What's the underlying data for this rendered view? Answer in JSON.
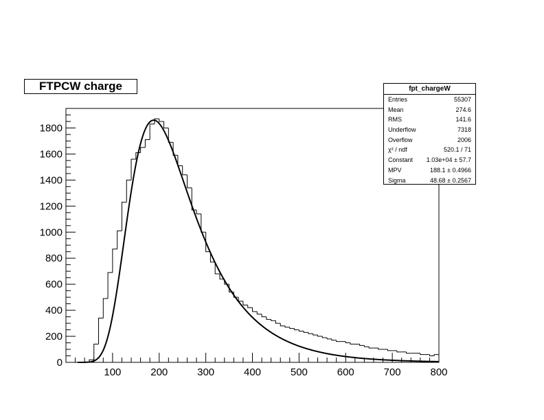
{
  "chart_data": {
    "type": "bar",
    "title": "FTPCW charge",
    "xlim": [
      0,
      800
    ],
    "ylim": [
      0,
      1950
    ],
    "x_ticks": [
      100,
      200,
      300,
      400,
      500,
      600,
      700,
      800
    ],
    "y_ticks": [
      0,
      200,
      400,
      600,
      800,
      1000,
      1200,
      1400,
      1600,
      1800
    ],
    "grid": false,
    "histogram": {
      "bin_width": 10,
      "bin_start": 0,
      "values": [
        0,
        0,
        0,
        0,
        0,
        20,
        140,
        340,
        490,
        690,
        870,
        1010,
        1230,
        1400,
        1560,
        1610,
        1650,
        1710,
        1830,
        1870,
        1850,
        1800,
        1690,
        1590,
        1510,
        1440,
        1340,
        1170,
        1140,
        1000,
        850,
        770,
        680,
        640,
        600,
        540,
        500,
        470,
        440,
        420,
        390,
        370,
        350,
        330,
        320,
        300,
        280,
        270,
        260,
        250,
        240,
        230,
        220,
        210,
        200,
        190,
        180,
        170,
        160,
        160,
        150,
        140,
        140,
        130,
        120,
        110,
        110,
        100,
        100,
        90,
        90,
        80,
        80,
        70,
        70,
        70,
        60,
        60,
        50,
        60
      ]
    },
    "fit": {
      "type": "landau",
      "constant": 10300,
      "mpv": 188.1,
      "sigma": 48.68
    }
  },
  "title_box": {
    "text": "FTPCW charge"
  },
  "stats": {
    "header": "fpt_chargeW",
    "rows": [
      {
        "key": "Entries",
        "value": "55307"
      },
      {
        "key": "Mean",
        "value": "274.6"
      },
      {
        "key": "RMS",
        "value": "141.6"
      },
      {
        "key": "Underflow",
        "value": "7318"
      },
      {
        "key": "Overflow",
        "value": "2006"
      },
      {
        "key": "χ² / ndf",
        "value": "520.1 / 71"
      },
      {
        "key": "Constant",
        "value": "1.03e+04 ± 57.7"
      },
      {
        "key": "MPV",
        "value": "188.1 ± 0.4966"
      },
      {
        "key": "Sigma",
        "value": "48.68 ± 0.2567"
      }
    ]
  }
}
